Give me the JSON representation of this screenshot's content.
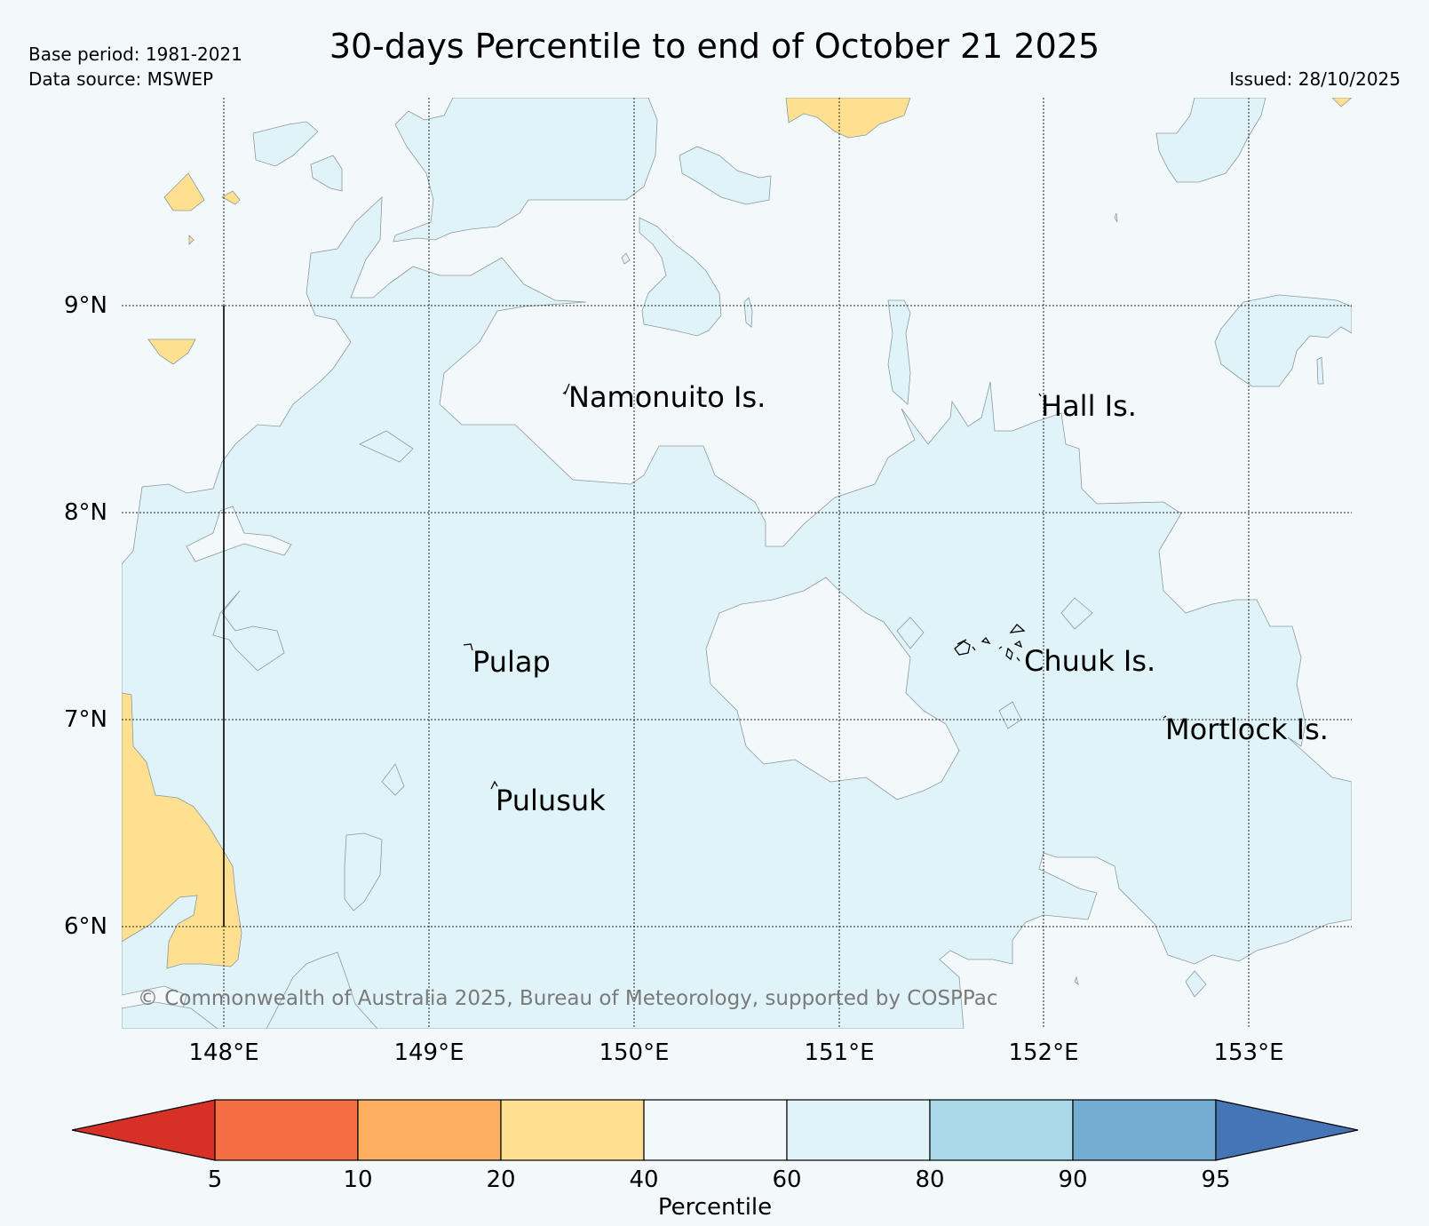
{
  "header": {
    "title": "30-days Percentile to end of October 21 2025",
    "base_period": "Base period: 1981-2021",
    "data_source": "Data source: MSWEP",
    "issued": "Issued: 28/10/2025"
  },
  "map": {
    "lat_labels": [
      "9°N",
      "8°N",
      "7°N",
      "6°N"
    ],
    "lon_labels": [
      "148°E",
      "149°E",
      "150°E",
      "151°E",
      "152°E",
      "153°E"
    ],
    "places": [
      "Namonuito Is.",
      "Hall Is.",
      "Pulap",
      "Chuuk Is.",
      "Mortlock Is.",
      "Pulusuk"
    ],
    "copyright": "© Commonwealth of Australia 2025, Bureau of Meteorology, supported by COSPPac"
  },
  "colorbar": {
    "label": "Percentile",
    "ticks": [
      "5",
      "10",
      "20",
      "40",
      "60",
      "80",
      "90",
      "95"
    ],
    "colors": {
      "below_5": "#d73027",
      "c5_10": "#f46d43",
      "c10_20": "#fdae61",
      "c20_40": "#fee090",
      "c40_60": "#f3f9fb",
      "c60_80": "#e0f3f8",
      "c80_90": "#abd9e9",
      "c90_95": "#74add1",
      "above_95": "#4575b4"
    }
  }
}
